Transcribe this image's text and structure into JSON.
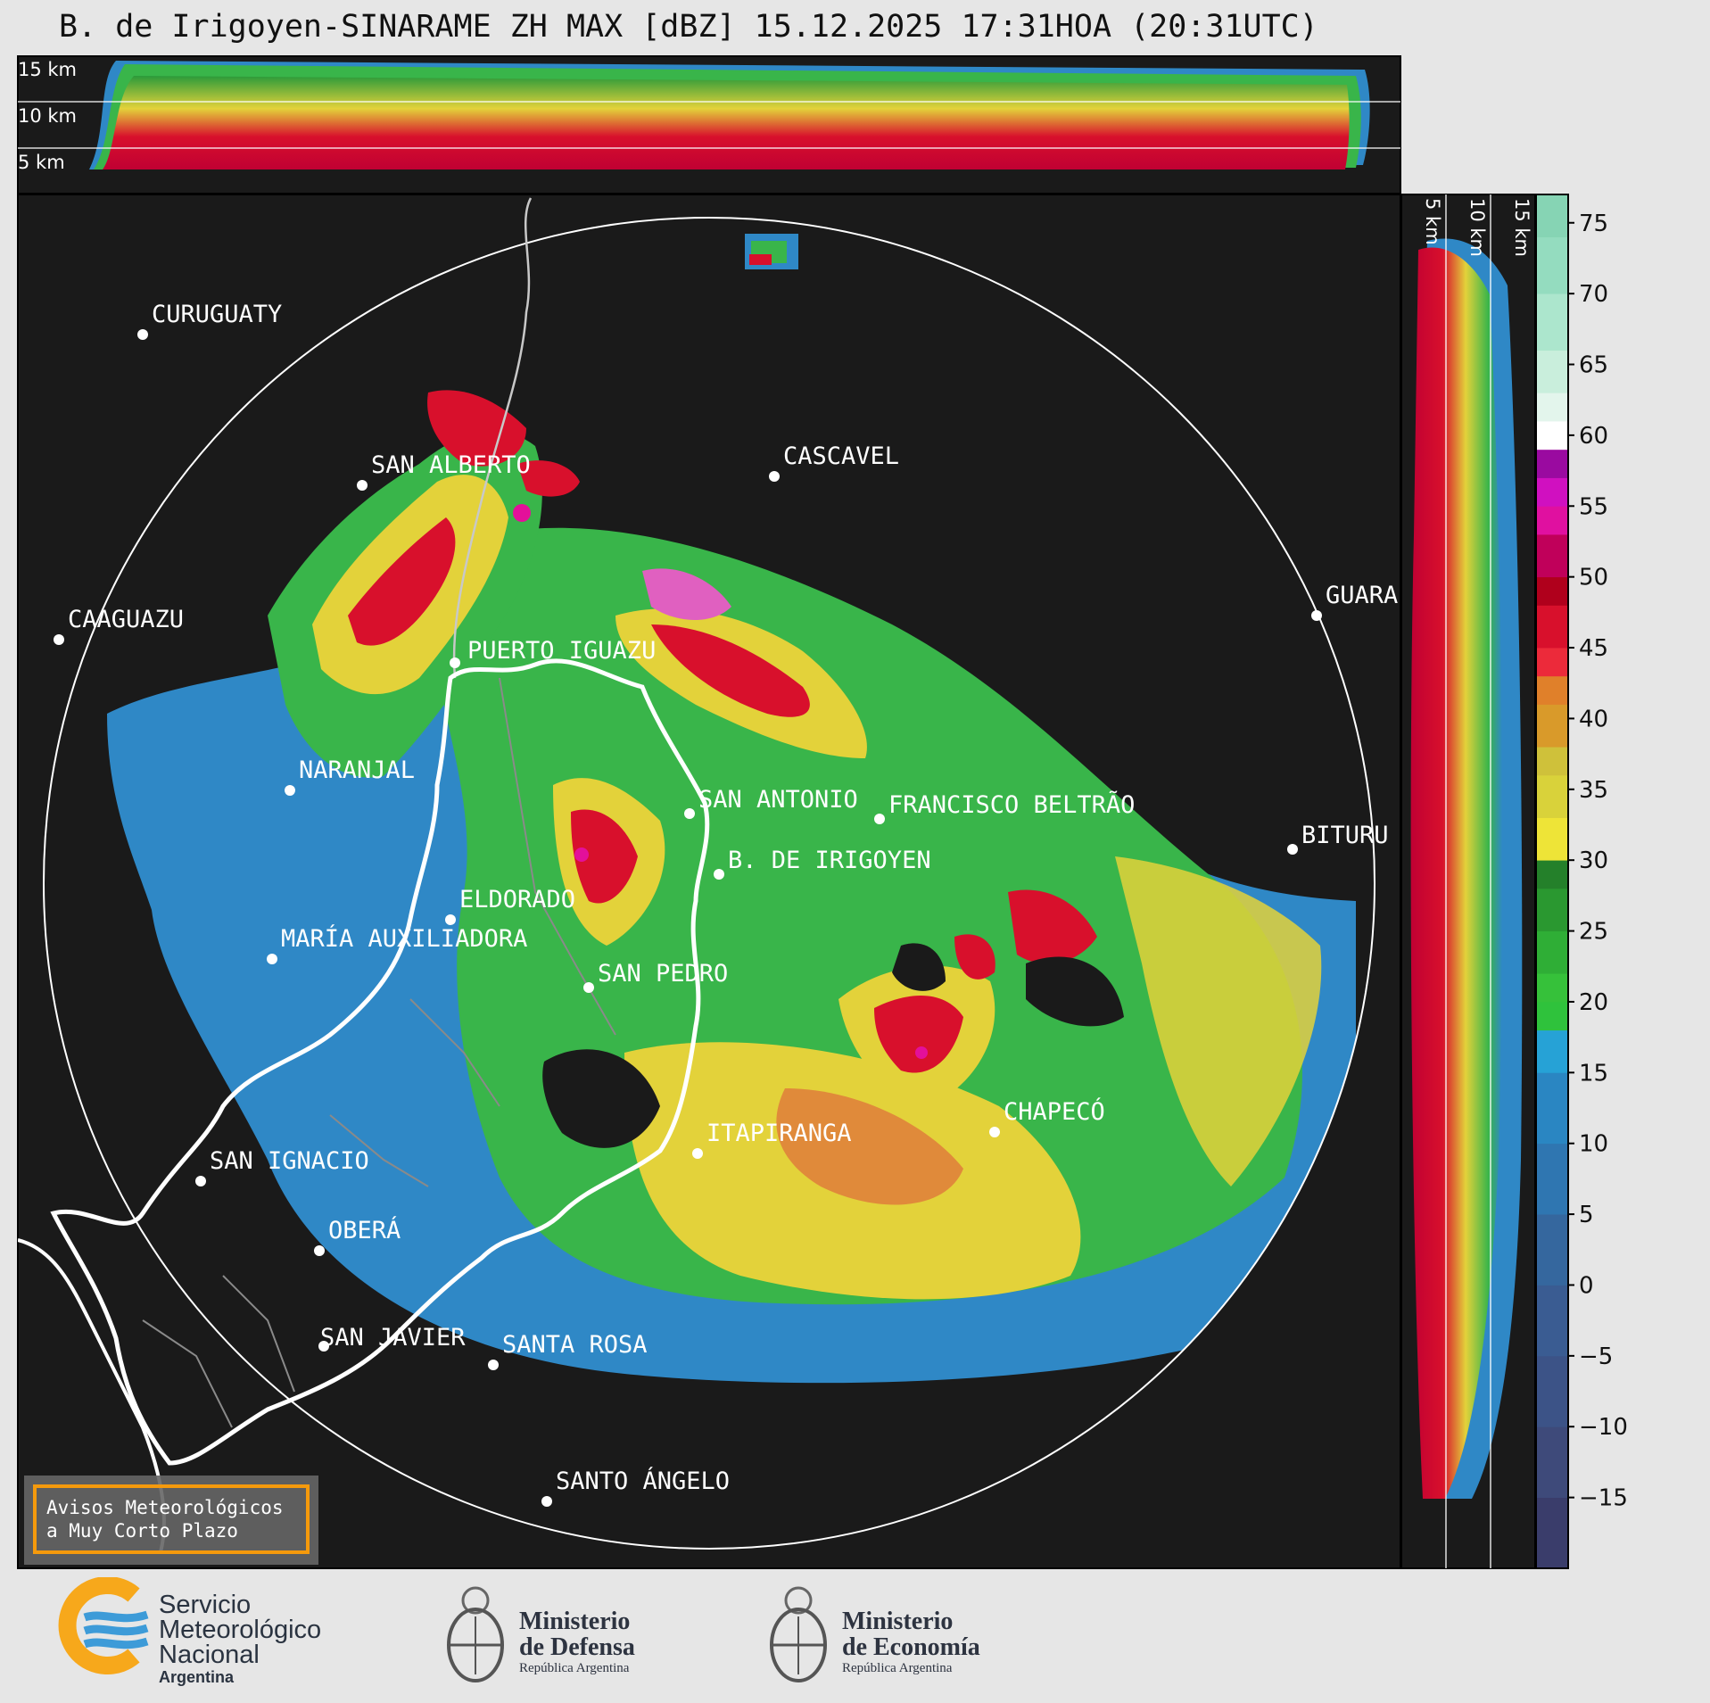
{
  "title": "B. de Irigoyen-SINARAME ZH MAX [dBZ] 15.12.2025 17:31HOA (20:31UTC)",
  "top_profile": {
    "labels": [
      "15 km",
      "10 km",
      "5 km"
    ]
  },
  "side_profile": {
    "labels": [
      "5 km",
      "10 km",
      "15 km"
    ]
  },
  "colorbar": {
    "ticks": [
      75,
      70,
      65,
      60,
      55,
      50,
      45,
      40,
      35,
      30,
      25,
      20,
      15,
      10,
      5,
      0,
      -5,
      -10,
      -15
    ],
    "tick_labels": [
      "75",
      "70",
      "65",
      "60",
      "55",
      "50",
      "45",
      "40",
      "35",
      "30",
      "25",
      "20",
      "15",
      "10",
      "5",
      "0",
      "−5",
      "−10",
      "−15"
    ],
    "range": [
      -20,
      77
    ]
  },
  "cities": [
    {
      "name": "CURUGUATY"
    },
    {
      "name": "SAN ALBERTO"
    },
    {
      "name": "CASCAVEL"
    },
    {
      "name": "CAAGUAZU"
    },
    {
      "name": "GUARA"
    },
    {
      "name": "PUERTO IGUAZU"
    },
    {
      "name": "NARANJAL"
    },
    {
      "name": "SAN ANTONIO"
    },
    {
      "name": "FRANCISCO BELTRÃO"
    },
    {
      "name": "BITURU"
    },
    {
      "name": "B. DE IRIGOYEN"
    },
    {
      "name": "ELDORADO"
    },
    {
      "name": "MARÍA AUXILIADORA"
    },
    {
      "name": "SAN PEDRO"
    },
    {
      "name": "CHAPECÓ"
    },
    {
      "name": "ITAPIRANGA"
    },
    {
      "name": "SAN IGNACIO"
    },
    {
      "name": "OBERÁ"
    },
    {
      "name": "SAN JAVIER"
    },
    {
      "name": "SANTA ROSA"
    },
    {
      "name": "SANTO ÁNGELO"
    }
  ],
  "warning_box": {
    "line1": "Avisos Meteorológicos",
    "line2": "a Muy Corto Plazo",
    "border_color": "#f59a0c"
  },
  "logos": {
    "smn": {
      "line1": "Servicio",
      "line2": "Meteorológico",
      "line3": "Nacional",
      "line4": "Argentina"
    },
    "defensa": {
      "line1": "Ministerio",
      "line2": "de Defensa",
      "line3": "República Argentina"
    },
    "economia": {
      "line1": "Ministerio",
      "line2": "de Economía",
      "line3": "República Argentina"
    }
  },
  "colors": {
    "background": "#1a1a1a",
    "page": "#e6e6e6",
    "smn_blue": "#3d9bd8",
    "smn_orange": "#f7a81b"
  }
}
